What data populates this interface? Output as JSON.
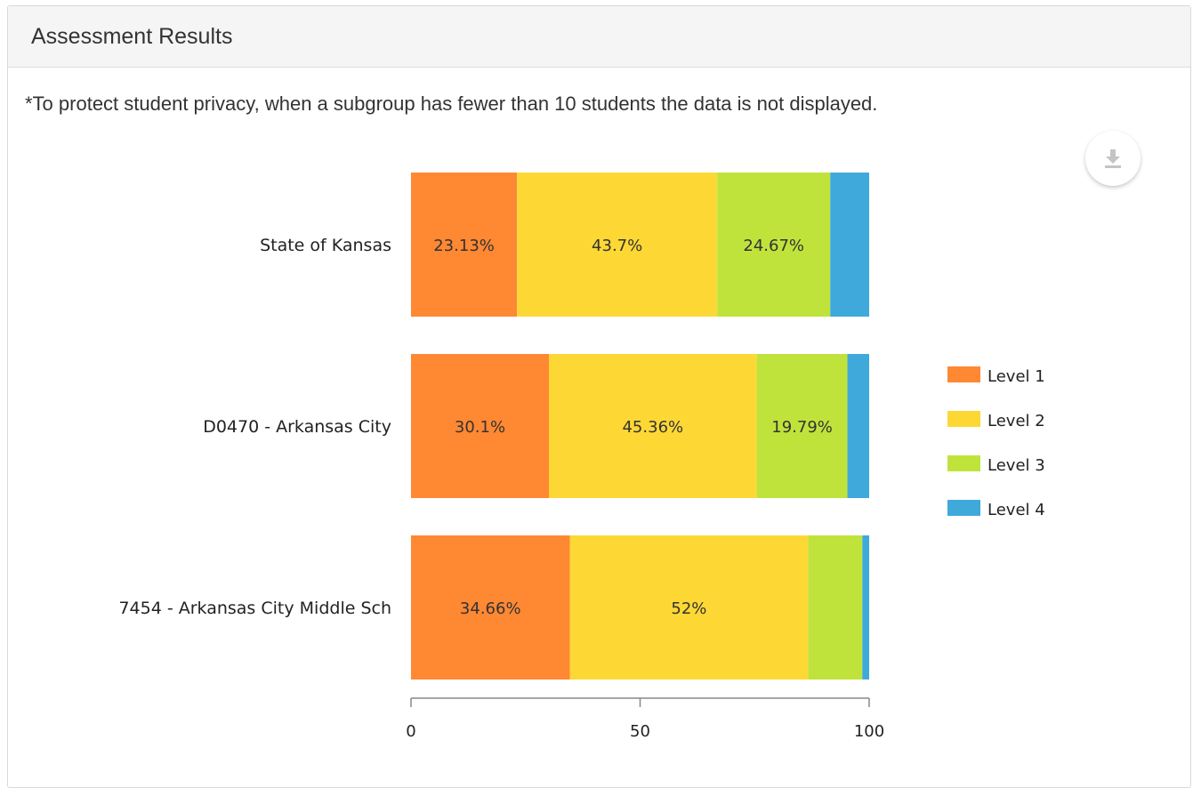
{
  "panel": {
    "title": "Assessment Results",
    "privacy_note": "*To protect student privacy, when a subgroup has fewer than 10 students the data is not displayed."
  },
  "download_button": {
    "icon": "download-icon"
  },
  "chart_data": {
    "type": "bar",
    "orientation": "horizontal",
    "stacked": true,
    "categories": [
      "State of Kansas",
      "D0470 - Arkansas City",
      "7454 - Arkansas City Middle Sch"
    ],
    "series": [
      {
        "name": "Level 1",
        "color": "#FF8833",
        "values": [
          23.13,
          30.1,
          34.66
        ],
        "labels": [
          "23.13%",
          "30.1%",
          "34.66%"
        ]
      },
      {
        "name": "Level 2",
        "color": "#FDD835",
        "values": [
          43.7,
          45.36,
          52
        ],
        "labels": [
          "43.7%",
          "45.36%",
          "52%"
        ]
      },
      {
        "name": "Level 3",
        "color": "#C0E33B",
        "values": [
          24.67,
          19.79,
          11.85
        ],
        "labels": [
          "24.67%",
          "19.79%",
          ""
        ]
      },
      {
        "name": "Level 4",
        "color": "#3FA9DB",
        "values": [
          8.5,
          4.75,
          1.49
        ],
        "labels": [
          "",
          "",
          ""
        ]
      }
    ],
    "xlim": [
      0,
      100
    ],
    "xticks": [
      "0",
      "50",
      "100"
    ],
    "legend": "right",
    "grid": false
  }
}
